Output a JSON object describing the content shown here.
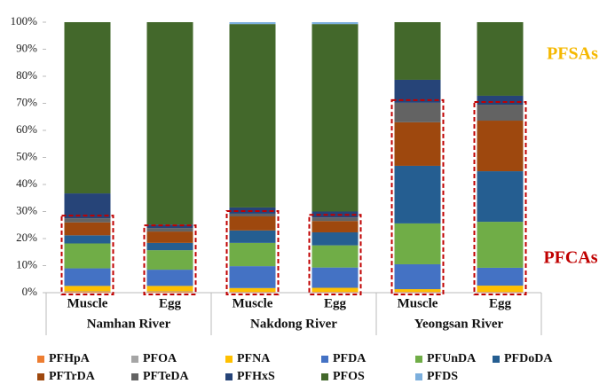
{
  "chart_data": {
    "type": "stacked-bar",
    "categories": [
      "Muscle",
      "Egg",
      "Muscle",
      "Egg",
      "Muscle",
      "Egg"
    ],
    "groups": [
      "Namhan River",
      "Nakdong River",
      "Yeongsan River"
    ],
    "ylim": [
      0,
      100
    ],
    "yticks": [
      {
        "value": 0,
        "label": "0%"
      },
      {
        "value": 10,
        "label": "10%"
      },
      {
        "value": 20,
        "label": "20%"
      },
      {
        "value": 30,
        "label": "30%"
      },
      {
        "value": 40,
        "label": "40%"
      },
      {
        "value": 50,
        "label": "50%"
      },
      {
        "value": 60,
        "label": "60%"
      },
      {
        "value": 70,
        "label": "70%"
      },
      {
        "value": 80,
        "label": "80%"
      },
      {
        "value": 90,
        "label": "90%"
      },
      {
        "value": 100,
        "label": "100%"
      }
    ],
    "series": [
      {
        "name": "PFHpA",
        "color": "#ED7D31",
        "values": [
          0.3,
          0.3,
          0.2,
          0.2,
          0.2,
          0.2
        ]
      },
      {
        "name": "PFOA",
        "color": "#A5A5A5",
        "values": [
          0.2,
          0.2,
          0.1,
          0.1,
          0.1,
          0.1
        ]
      },
      {
        "name": "PFNA",
        "color": "#FFC000",
        "values": [
          2,
          2,
          1.4,
          1.5,
          1,
          2.3
        ]
      },
      {
        "name": "PFDA",
        "color": "#4472C4",
        "values": [
          6.5,
          6,
          8.1,
          7.5,
          9.2,
          6.6
        ]
      },
      {
        "name": "PFUnDA",
        "color": "#70AD47",
        "values": [
          9.2,
          7.2,
          8.6,
          8.2,
          15.1,
          17
        ]
      },
      {
        "name": "PFDoDA",
        "color": "#255E91",
        "values": [
          3,
          2.7,
          4.6,
          4.8,
          21.3,
          18.7
        ]
      },
      {
        "name": "PFTrDA",
        "color": "#9E480E",
        "values": [
          4.8,
          4.2,
          5.2,
          4.2,
          16.1,
          18.7
        ]
      },
      {
        "name": "PFTeDA",
        "color": "#636363",
        "values": [
          1.5,
          1.3,
          1,
          1.3,
          7.2,
          5.9
        ]
      },
      {
        "name": "PFHxS",
        "color": "#264478",
        "values": [
          9.2,
          1.3,
          2.3,
          2.2,
          8.5,
          3.3
        ]
      },
      {
        "name": "PFOS",
        "color": "#43682B",
        "values": [
          63.3,
          74.8,
          67.8,
          69.3,
          21.3,
          27.2
        ]
      },
      {
        "name": "PFDS",
        "color": "#7CAFDD",
        "values": [
          0,
          0,
          0.7,
          0.7,
          0,
          0
        ]
      }
    ],
    "annotations": [
      {
        "text": "PFSAs",
        "color": "#F5B800"
      },
      {
        "text": "PFCAs",
        "color": "#C00000"
      }
    ]
  }
}
